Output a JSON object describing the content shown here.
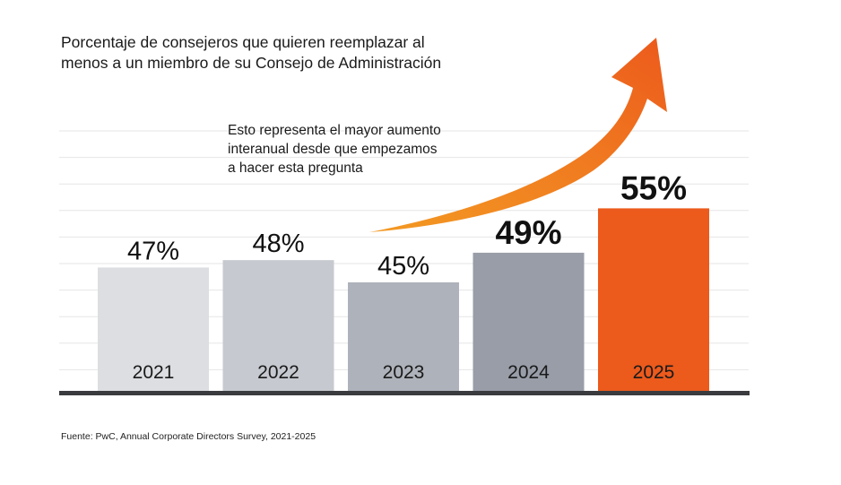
{
  "title_lines": [
    "Porcentaje de consejeros que quieren reemplazar al",
    "menos a un miembro de su Consejo de Administración"
  ],
  "annotation_lines": [
    "Esto representa el mayor aumento",
    "interanual desde que empezamos",
    "a hacer esta pregunta"
  ],
  "source": "Fuente: PwC, Annual Corporate Directors Survey, 2021-2025",
  "colors": {
    "accent": "#EC5A1C",
    "arrow_start": "#F39A23",
    "arrow_end": "#EC5A1C",
    "baseline": "#3a3b3f",
    "gridline": "#e6e6e6"
  },
  "chart_data": {
    "type": "bar",
    "title": "Porcentaje de consejeros que quieren reemplazar al menos a un miembro de su Consejo de Administración",
    "xlabel": "",
    "ylabel": "",
    "categories": [
      "2021",
      "2022",
      "2023",
      "2024",
      "2025"
    ],
    "values": [
      47,
      48,
      45,
      49,
      55
    ],
    "value_labels": [
      "47%",
      "48%",
      "45%",
      "49%",
      "55%"
    ],
    "value_label_emphasis": [
      "normal",
      "normal",
      "normal",
      "bold",
      "bold"
    ],
    "bar_colors": [
      "#DCDEE1",
      "#C6C9CF",
      "#AEB2BA",
      "#989DA8",
      "#EC5A1C"
    ],
    "unit": "%",
    "grid": true,
    "axis_visible": false,
    "annotation": "Esto representa el mayor aumento interanual desde que empezamos a hacer esta pregunta",
    "trend_arrow": "upward curved arrow from 2023 toward 2025"
  }
}
